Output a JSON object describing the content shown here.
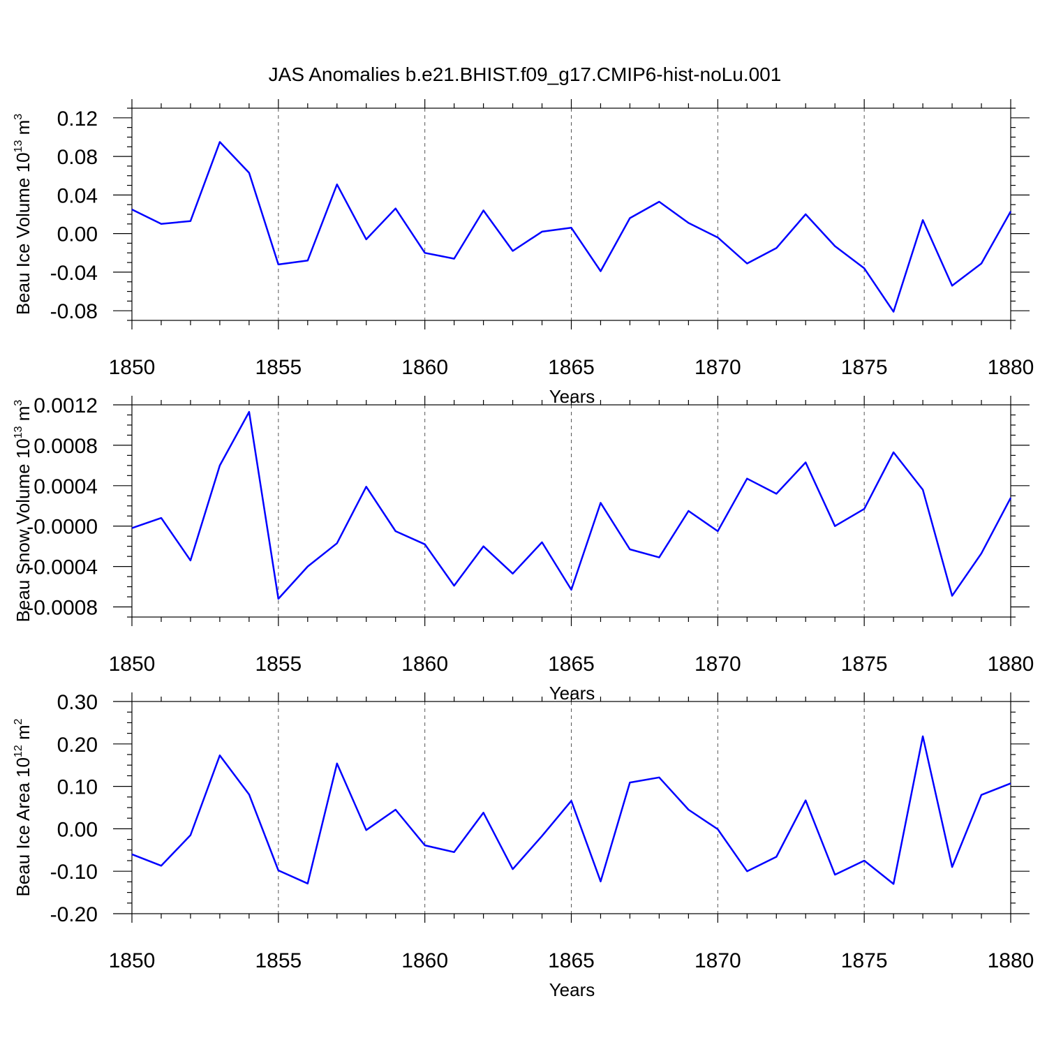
{
  "title": "JAS Anomalies b.e21.BHIST.f09_g17.CMIP6-hist-noLu.001",
  "colors": {
    "line": "#0000ff",
    "axis": "#000000"
  },
  "chart_data": [
    {
      "type": "line",
      "ylabel_main": "Beau Ice Volume 10",
      "ylabel_exp": "13",
      "ylabel_unit": " m",
      "ylabel_unit_exp": "3",
      "xlabel": "Years",
      "xlim": [
        1850,
        1880
      ],
      "ylim": [
        -0.09,
        0.13
      ],
      "yticks": [
        -0.08,
        -0.04,
        0.0,
        0.04,
        0.08,
        0.12
      ],
      "ytick_labels": [
        "-0.08",
        "-0.04",
        "0.00",
        "0.04",
        "0.08",
        "0.12"
      ],
      "xticks": [
        1850,
        1855,
        1860,
        1865,
        1870,
        1875,
        1880
      ],
      "xtick_labels": [
        "1850",
        "1855",
        "1860",
        "1865",
        "1870",
        "1875",
        "1880"
      ],
      "x": [
        1850,
        1851,
        1852,
        1853,
        1854,
        1855,
        1856,
        1857,
        1858,
        1859,
        1860,
        1861,
        1862,
        1863,
        1864,
        1865,
        1866,
        1867,
        1868,
        1869,
        1870,
        1871,
        1872,
        1873,
        1874,
        1875,
        1876,
        1877,
        1878,
        1879,
        1880
      ],
      "y": [
        0.025,
        0.01,
        0.013,
        0.095,
        0.063,
        -0.032,
        -0.028,
        0.051,
        -0.006,
        0.026,
        -0.02,
        -0.026,
        0.024,
        -0.018,
        0.002,
        0.006,
        -0.039,
        0.016,
        0.033,
        0.011,
        -0.004,
        -0.031,
        -0.015,
        0.02,
        -0.013,
        -0.036,
        -0.081,
        0.014,
        -0.054,
        -0.031,
        0.023
      ]
    },
    {
      "type": "line",
      "ylabel_main": "Beau Snow Volume 10",
      "ylabel_exp": "13",
      "ylabel_unit": " m",
      "ylabel_unit_exp": "3",
      "xlabel": "Years",
      "xlim": [
        1850,
        1880
      ],
      "ylim": [
        -0.0009,
        0.0012
      ],
      "yticks": [
        -0.0008,
        -0.0004,
        0.0,
        0.0004,
        0.0008,
        0.0012
      ],
      "ytick_labels": [
        "-0.0008",
        "-0.0004",
        "-0.0000",
        "0.0004",
        "0.0008",
        "0.0012"
      ],
      "xticks": [
        1850,
        1855,
        1860,
        1865,
        1870,
        1875,
        1880
      ],
      "xtick_labels": [
        "1850",
        "1855",
        "1860",
        "1865",
        "1870",
        "1875",
        "1880"
      ],
      "x": [
        1850,
        1851,
        1852,
        1853,
        1854,
        1855,
        1856,
        1857,
        1858,
        1859,
        1860,
        1861,
        1862,
        1863,
        1864,
        1865,
        1866,
        1867,
        1868,
        1869,
        1870,
        1871,
        1872,
        1873,
        1874,
        1875,
        1876,
        1877,
        1878,
        1879,
        1880
      ],
      "y": [
        -2e-05,
        8e-05,
        -0.00034,
        0.0006,
        0.00113,
        -0.00072,
        -0.0004,
        -0.00017,
        0.00039,
        -5e-05,
        -0.00018,
        -0.00059,
        -0.0002,
        -0.00047,
        -0.00016,
        -0.00063,
        0.00023,
        -0.00023,
        -0.00031,
        0.00015,
        -5e-05,
        0.00047,
        0.00032,
        0.00063,
        0.0,
        0.00017,
        0.00073,
        0.00036,
        -0.00069,
        -0.00027,
        0.00028
      ]
    },
    {
      "type": "line",
      "ylabel_main": "Beau Ice Area 10",
      "ylabel_exp": "12",
      "ylabel_unit": " m",
      "ylabel_unit_exp": "2",
      "xlabel": "Years",
      "xlim": [
        1850,
        1880
      ],
      "ylim": [
        -0.2,
        0.3
      ],
      "yticks": [
        -0.2,
        -0.1,
        0.0,
        0.1,
        0.2,
        0.3
      ],
      "ytick_labels": [
        "-0.20",
        "-0.10",
        "0.00",
        "0.10",
        "0.20",
        "0.30"
      ],
      "xticks": [
        1850,
        1855,
        1860,
        1865,
        1870,
        1875,
        1880
      ],
      "xtick_labels": [
        "1850",
        "1855",
        "1860",
        "1865",
        "1870",
        "1875",
        "1880"
      ],
      "x": [
        1850,
        1851,
        1852,
        1853,
        1854,
        1855,
        1856,
        1857,
        1858,
        1859,
        1860,
        1861,
        1862,
        1863,
        1864,
        1865,
        1866,
        1867,
        1868,
        1869,
        1870,
        1871,
        1872,
        1873,
        1874,
        1875,
        1876,
        1877,
        1878,
        1879,
        1880
      ],
      "y": [
        -0.06,
        -0.087,
        -0.015,
        0.173,
        0.081,
        -0.098,
        -0.129,
        0.154,
        -0.003,
        0.045,
        -0.039,
        -0.055,
        0.038,
        -0.095,
        -0.017,
        0.066,
        -0.124,
        0.109,
        0.121,
        0.045,
        -0.001,
        -0.1,
        -0.066,
        0.067,
        -0.108,
        -0.075,
        -0.13,
        0.218,
        -0.09,
        0.08,
        0.107
      ]
    }
  ]
}
